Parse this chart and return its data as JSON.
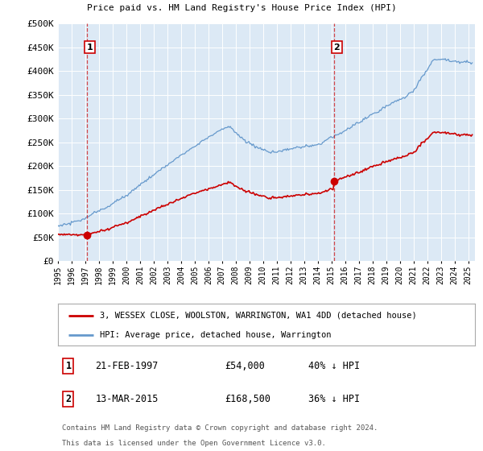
{
  "title": "3, WESSEX CLOSE, WOOLSTON, WARRINGTON, WA1 4DD",
  "subtitle": "Price paid vs. HM Land Registry's House Price Index (HPI)",
  "xlim_start": 1995.0,
  "xlim_end": 2025.5,
  "ylim_min": 0,
  "ylim_max": 500000,
  "yticks": [
    0,
    50000,
    100000,
    150000,
    200000,
    250000,
    300000,
    350000,
    400000,
    450000,
    500000
  ],
  "ytick_labels": [
    "£0",
    "£50K",
    "£100K",
    "£150K",
    "£200K",
    "£250K",
    "£300K",
    "£350K",
    "£400K",
    "£450K",
    "£500K"
  ],
  "xticks": [
    1995,
    1996,
    1997,
    1998,
    1999,
    2000,
    2001,
    2002,
    2003,
    2004,
    2005,
    2006,
    2007,
    2008,
    2009,
    2010,
    2011,
    2012,
    2013,
    2014,
    2015,
    2016,
    2017,
    2018,
    2019,
    2020,
    2021,
    2022,
    2023,
    2024,
    2025
  ],
  "transaction1_x": 1997.13,
  "transaction1_y": 54000,
  "transaction1_label": "21-FEB-1997",
  "transaction1_price": "£54,000",
  "transaction1_hpi": "40% ↓ HPI",
  "transaction2_x": 2015.2,
  "transaction2_y": 168500,
  "transaction2_label": "13-MAR-2015",
  "transaction2_price": "£168,500",
  "transaction2_hpi": "36% ↓ HPI",
  "red_line_color": "#cc0000",
  "blue_line_color": "#6699cc",
  "vline_color": "#cc0000",
  "bg_color": "#dce9f5",
  "legend_line1": "3, WESSEX CLOSE, WOOLSTON, WARRINGTON, WA1 4DD (detached house)",
  "legend_line2": "HPI: Average price, detached house, Warrington",
  "footer1": "Contains HM Land Registry data © Crown copyright and database right 2024.",
  "footer2": "This data is licensed under the Open Government Licence v3.0."
}
